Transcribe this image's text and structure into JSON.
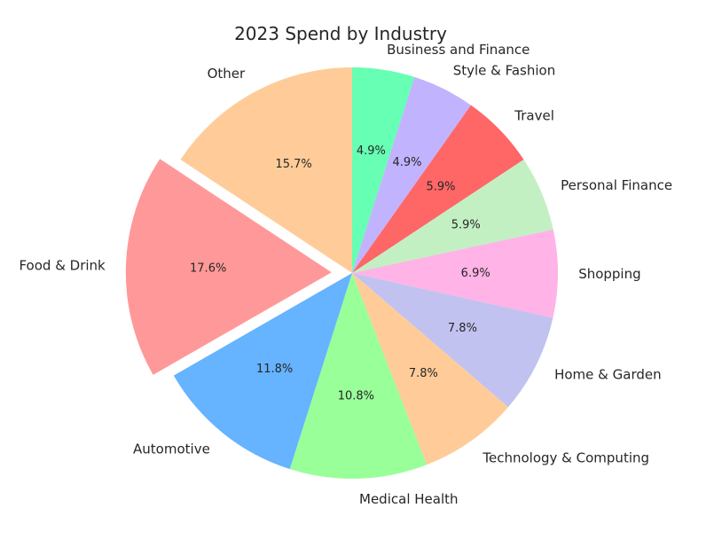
{
  "chart_data": {
    "type": "pie",
    "title": "2023 Spend by Industry",
    "start_angle_deg": 90,
    "direction": "clockwise",
    "exploded": [
      "Food & Drink"
    ],
    "slices": [
      {
        "label": "Business and Finance",
        "value": 4.9,
        "value_label": "4.9%",
        "color": "#66ffb3"
      },
      {
        "label": "Style & Fashion",
        "value": 4.9,
        "value_label": "4.9%",
        "color": "#c2b3ff"
      },
      {
        "label": "Travel",
        "value": 5.9,
        "value_label": "5.9%",
        "color": "#ff6666"
      },
      {
        "label": "Personal Finance",
        "value": 5.9,
        "value_label": "5.9%",
        "color": "#c2f0c2"
      },
      {
        "label": "Shopping",
        "value": 6.9,
        "value_label": "6.9%",
        "color": "#ffb3e6"
      },
      {
        "label": "Home & Garden",
        "value": 7.8,
        "value_label": "7.8%",
        "color": "#c2c2f0"
      },
      {
        "label": "Technology & Computing",
        "value": 7.8,
        "value_label": "7.8%",
        "color": "#ffcc99"
      },
      {
        "label": "Medical Health",
        "value": 10.8,
        "value_label": "10.8%",
        "color": "#99ff99"
      },
      {
        "label": "Automotive",
        "value": 11.8,
        "value_label": "11.8%",
        "color": "#66b3ff"
      },
      {
        "label": "Food & Drink",
        "value": 17.6,
        "value_label": "17.6%",
        "color": "#ff9999"
      },
      {
        "label": "Other",
        "value": 15.7,
        "value_label": "15.7%",
        "color": "#ffcc99"
      }
    ]
  }
}
